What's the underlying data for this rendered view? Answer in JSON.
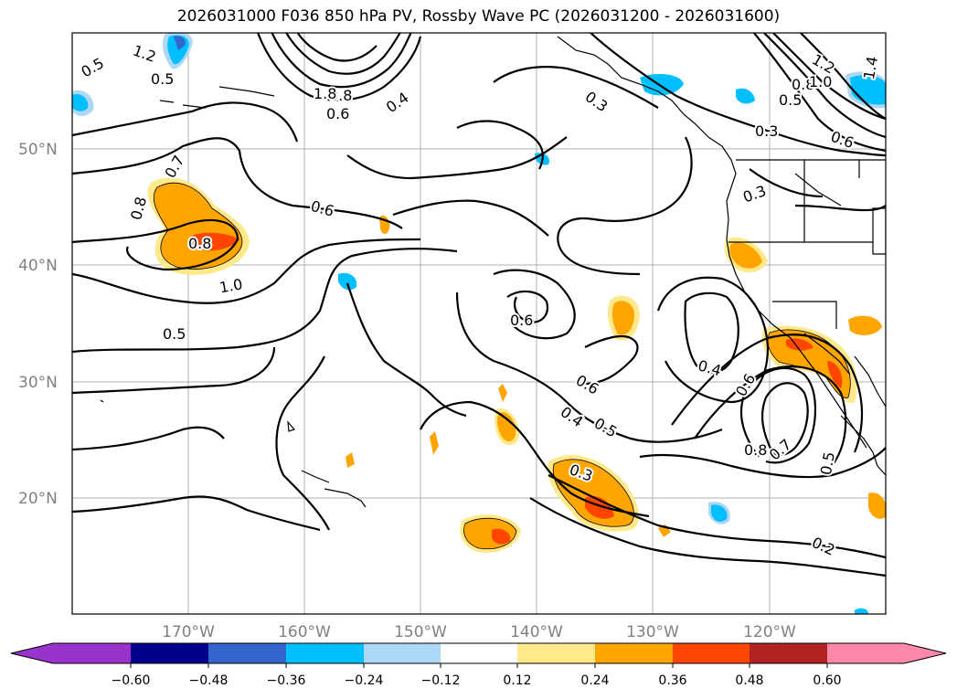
{
  "title": "2026031000 F036 850 hPa PV, Rossby Wave PC (2026031200 - 2026031600)",
  "axes": {
    "lat_labels": [
      "50°N",
      "40°N",
      "30°N",
      "20°N"
    ],
    "lon_labels": [
      "170°W",
      "160°W",
      "150°W",
      "140°W",
      "130°W",
      "120°W"
    ]
  },
  "colorbar": {
    "ticks": [
      "−0.60",
      "−0.48",
      "−0.36",
      "−0.24",
      "−0.12",
      "0.12",
      "0.24",
      "0.36",
      "0.48",
      "0.60"
    ],
    "colors": [
      "#9933cc",
      "#00008b",
      "#3366cc",
      "#00bfff",
      "#add8f5",
      "#ffffff",
      "#ffe98a",
      "#ffa500",
      "#ff4500",
      "#b22222",
      "#ff88aa"
    ]
  },
  "contour_labels": [
    "0.5",
    "0.5",
    "1.2",
    "0.8",
    "0.6",
    "1.8",
    "0.4",
    "0.3",
    "1.2",
    "0.8",
    "1.0",
    "0.5",
    "1.4",
    "0.3",
    "0.6",
    "0.7",
    "0.8",
    "0.6",
    "0.8",
    "1.0",
    "0.3",
    "0.5",
    "0.6",
    "0.4",
    "0.6",
    "0.6",
    "0.4",
    "0.5",
    "0.8",
    "0.7",
    "0.3",
    "0.5",
    "0.2"
  ],
  "colors": {
    "pos_light": "#ffe98a",
    "pos_mid": "#ffa500",
    "pos_high": "#ff4500",
    "neg_light": "#add8f5",
    "neg_mid": "#00bfff",
    "neg_high": "#3366cc"
  }
}
